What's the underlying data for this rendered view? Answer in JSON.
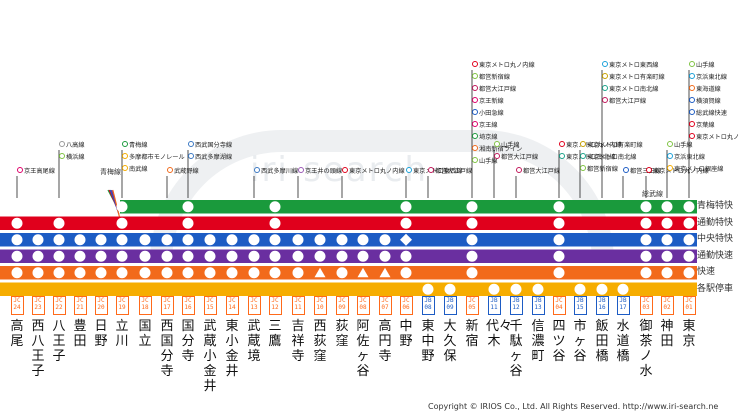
{
  "watermark": "iri-search",
  "bands": [
    {
      "key": "ome",
      "label": "青梅特快",
      "color": "#1a9a3c"
    },
    {
      "key": "tsukin",
      "label": "通勤特快",
      "color": "#e0001c"
    },
    {
      "key": "chuotokkai",
      "label": "中央特快",
      "color": "#1d5cc4"
    },
    {
      "key": "tsukinkai",
      "label": "通勤快速",
      "color": "#6a2fa0"
    },
    {
      "key": "kaisoku",
      "label": "快速",
      "color": "#f26a1b"
    },
    {
      "key": "kakueki",
      "label": "各駅停車",
      "color": "#f6ad00"
    }
  ],
  "branch_label": "青梅線",
  "sobu_label": "総武線",
  "stations": [
    {
      "name": "高尾",
      "code": "JC24",
      "code_color": "orange",
      "stops": [
        "none",
        "dot",
        "dot",
        "dot",
        "dot",
        "none"
      ],
      "transfers": [
        {
          "label": "京王高尾線",
          "color": "#e0006a"
        }
      ]
    },
    {
      "name": "西八王子",
      "code": "JC23",
      "code_color": "orange",
      "stops": [
        "none",
        "none",
        "dot",
        "dot",
        "dot",
        "none"
      ],
      "transfers": []
    },
    {
      "name": "八王子",
      "code": "JC22",
      "code_color": "orange",
      "stops": [
        "none",
        "dot",
        "dot",
        "dot",
        "dot",
        "none"
      ],
      "transfers": [
        {
          "label": "八高線",
          "color": "#999999"
        },
        {
          "label": "横浜線",
          "color": "#7fc342"
        }
      ]
    },
    {
      "name": "豊田",
      "code": "JC21",
      "code_color": "orange",
      "stops": [
        "none",
        "none",
        "dot",
        "dot",
        "dot",
        "none"
      ],
      "transfers": []
    },
    {
      "name": "日野",
      "code": "JC20",
      "code_color": "orange",
      "stops": [
        "none",
        "none",
        "dot",
        "dot",
        "dot",
        "none"
      ],
      "transfers": []
    },
    {
      "name": "立川",
      "code": "JC19",
      "code_color": "orange",
      "stops": [
        "dot",
        "dot",
        "dot",
        "dot",
        "dot",
        "none"
      ],
      "transfers": [
        {
          "label": "青梅線",
          "color": "#1a9a3c"
        },
        {
          "label": "多摩都市モノレール",
          "color": "#f6ad00"
        },
        {
          "label": "南武線",
          "color": "#f6ad00"
        }
      ]
    },
    {
      "name": "国立",
      "code": "JC18",
      "code_color": "orange",
      "stops": [
        "none",
        "none",
        "dot",
        "dot",
        "dot",
        "none"
      ],
      "transfers": []
    },
    {
      "name": "西国分寺",
      "code": "JC17",
      "code_color": "orange",
      "stops": [
        "none",
        "none",
        "dot",
        "dot",
        "dot",
        "none"
      ],
      "transfers": [
        {
          "label": "武蔵野線",
          "color": "#f26a1b"
        }
      ]
    },
    {
      "name": "国分寺",
      "code": "JC16",
      "code_color": "orange",
      "stops": [
        "dot",
        "dot",
        "dot",
        "dot",
        "dot",
        "none"
      ],
      "transfers": [
        {
          "label": "西武国分寺線",
          "color": "#3a78c3"
        },
        {
          "label": "西武多摩湖線",
          "color": "#3a78c3"
        }
      ]
    },
    {
      "name": "武蔵小金井",
      "code": "JC15",
      "code_color": "orange",
      "stops": [
        "none",
        "none",
        "dot",
        "dot",
        "dot",
        "none"
      ],
      "transfers": []
    },
    {
      "name": "東小金井",
      "code": "JC14",
      "code_color": "orange",
      "stops": [
        "none",
        "none",
        "dot",
        "dot",
        "dot",
        "none"
      ],
      "transfers": []
    },
    {
      "name": "武蔵境",
      "code": "JC13",
      "code_color": "orange",
      "stops": [
        "none",
        "none",
        "dot",
        "dot",
        "dot",
        "none"
      ],
      "transfers": [
        {
          "label": "西武多摩川線",
          "color": "#3a78c3"
        }
      ]
    },
    {
      "name": "三鷹",
      "code": "JC12",
      "code_color": "orange",
      "stops": [
        "dot",
        "dot",
        "dot",
        "dot",
        "dot",
        "none"
      ],
      "transfers": []
    },
    {
      "name": "吉祥寺",
      "code": "JC11",
      "code_color": "orange",
      "stops": [
        "none",
        "none",
        "dot",
        "dot",
        "dot",
        "none"
      ],
      "transfers": [
        {
          "label": "京王井の頭線",
          "color": "#9b59b6"
        }
      ]
    },
    {
      "name": "西荻窪",
      "code": "JC10",
      "code_color": "orange",
      "stops": [
        "none",
        "none",
        "dot",
        "dot",
        "tri",
        "none"
      ],
      "transfers": []
    },
    {
      "name": "荻窪",
      "code": "JC09",
      "code_color": "orange",
      "stops": [
        "none",
        "none",
        "dot",
        "dot",
        "dot",
        "none"
      ],
      "transfers": [
        {
          "label": "東京メトロ丸ノ内線",
          "color": "#e0001c"
        }
      ]
    },
    {
      "name": "阿佐ヶ谷",
      "code": "JC08",
      "code_color": "orange",
      "stops": [
        "none",
        "none",
        "dot",
        "dot",
        "tri",
        "none"
      ],
      "transfers": []
    },
    {
      "name": "高円寺",
      "code": "JC07",
      "code_color": "orange",
      "stops": [
        "none",
        "none",
        "dot",
        "dot",
        "tri",
        "none"
      ],
      "transfers": []
    },
    {
      "name": "中野",
      "code": "JC06",
      "code_color": "orange",
      "stops": [
        "dot",
        "dot",
        "diamond",
        "dot",
        "dot",
        "none"
      ],
      "transfers": [
        {
          "label": "東京メトロ東西線",
          "color": "#1aa0d8"
        }
      ]
    },
    {
      "name": "東中野",
      "code": "JB08",
      "code_color": "blue",
      "stops": [
        "none",
        "none",
        "none",
        "none",
        "none",
        "dot"
      ],
      "transfers": [
        {
          "label": "都営大江戸線",
          "color": "#c2185b"
        }
      ]
    },
    {
      "name": "大久保",
      "code": "JB09",
      "code_color": "blue",
      "stops": [
        "none",
        "none",
        "none",
        "none",
        "none",
        "dot"
      ],
      "transfers": []
    },
    {
      "name": "新宿",
      "code": "JC05",
      "code_color": "orange",
      "stops": [
        "dot",
        "dot",
        "dot",
        "dot",
        "dot",
        "none"
      ],
      "transfers": [
        {
          "label": "東京メトロ丸ノ内線",
          "color": "#e0001c"
        },
        {
          "label": "都営新宿線",
          "color": "#7fc342"
        },
        {
          "label": "都営大江戸線",
          "color": "#c2185b"
        },
        {
          "label": "京王新線",
          "color": "#e0006a"
        },
        {
          "label": "小田急線",
          "color": "#1d5cc4"
        },
        {
          "label": "京王線",
          "color": "#e0006a"
        },
        {
          "label": "埼京線",
          "color": "#1a9a3c"
        },
        {
          "label": "湘南新宿ライン",
          "color": "#f26a1b"
        },
        {
          "label": "山手線",
          "color": "#7fc342"
        }
      ]
    },
    {
      "name": "代々木",
      "code": "JB11",
      "code_color": "blue",
      "stops": [
        "none",
        "none",
        "none",
        "none",
        "none",
        "dot"
      ],
      "transfers": [
        {
          "label": "山手線",
          "color": "#7fc342"
        },
        {
          "label": "都営大江戸線",
          "color": "#c2185b"
        }
      ]
    },
    {
      "name": "千駄ヶ谷",
      "code": "JB12",
      "code_color": "blue",
      "stops": [
        "none",
        "none",
        "none",
        "none",
        "none",
        "dot"
      ],
      "transfers": [
        {
          "label": "都営大江戸線",
          "color": "#c2185b"
        }
      ]
    },
    {
      "name": "信濃町",
      "code": "JB13",
      "code_color": "blue",
      "stops": [
        "none",
        "none",
        "none",
        "none",
        "none",
        "dot"
      ],
      "transfers": []
    },
    {
      "name": "四ツ谷",
      "code": "JC04",
      "code_color": "orange",
      "stops": [
        "dot",
        "dot",
        "dot",
        "dot",
        "dot",
        "none"
      ],
      "transfers": [
        {
          "label": "東京メトロ丸ノ内線",
          "color": "#e0001c"
        },
        {
          "label": "東京メトロ南北線",
          "color": "#1aa38a"
        }
      ]
    },
    {
      "name": "市ヶ谷",
      "code": "JB15",
      "code_color": "blue",
      "stops": [
        "none",
        "none",
        "none",
        "none",
        "none",
        "dot"
      ],
      "transfers": [
        {
          "label": "東京メトロ有楽町線",
          "color": "#c9a200"
        },
        {
          "label": "東京メトロ南北線",
          "color": "#1aa38a"
        },
        {
          "label": "都営新宿線",
          "color": "#7fc342"
        }
      ]
    },
    {
      "name": "飯田橋",
      "code": "JB16",
      "code_color": "blue",
      "stops": [
        "none",
        "none",
        "none",
        "none",
        "none",
        "dot"
      ],
      "transfers": [
        {
          "label": "東京メトロ東西線",
          "color": "#1aa0d8"
        },
        {
          "label": "東京メトロ有楽町線",
          "color": "#c9a200"
        },
        {
          "label": "東京メトロ南北線",
          "color": "#1aa38a"
        },
        {
          "label": "都営大江戸線",
          "color": "#c2185b"
        }
      ]
    },
    {
      "name": "水道橋",
      "code": "JB17",
      "code_color": "blue",
      "stops": [
        "none",
        "none",
        "none",
        "none",
        "none",
        "dot"
      ],
      "transfers": [
        {
          "label": "都営三田線",
          "color": "#1d5cc4"
        }
      ]
    },
    {
      "name": "御茶ノ水",
      "code": "JC03",
      "code_color": "orange",
      "stops": [
        "dot",
        "dot",
        "dot",
        "dot",
        "dot",
        "none"
      ],
      "transfers": [
        {
          "label": "東京メトロ丸ノ内線",
          "color": "#e0001c"
        }
      ]
    },
    {
      "name": "神田",
      "code": "JC02",
      "code_color": "orange",
      "stops": [
        "dot",
        "dot",
        "dot",
        "dot",
        "dot",
        "none"
      ],
      "transfers": [
        {
          "label": "山手線",
          "color": "#7fc342"
        },
        {
          "label": "京浜東北線",
          "color": "#1aa0d8"
        },
        {
          "label": "東京メトロ銀座線",
          "color": "#f6ad00"
        }
      ]
    },
    {
      "name": "東京",
      "code": "JC01",
      "code_color": "orange",
      "stops": [
        "dot",
        "dot",
        "dot",
        "dot",
        "dot",
        "none"
      ],
      "transfers": [
        {
          "label": "山手線",
          "color": "#7fc342"
        },
        {
          "label": "京浜東北線",
          "color": "#1aa0d8"
        },
        {
          "label": "東海道線",
          "color": "#f26a1b"
        },
        {
          "label": "横須賀線",
          "color": "#1d5cc4"
        },
        {
          "label": "総武線快速",
          "color": "#1d5cc4"
        },
        {
          "label": "京葉線",
          "color": "#e0001c"
        },
        {
          "label": "東京メトロ丸ノ内線",
          "color": "#e0001c"
        }
      ]
    }
  ],
  "copyright": "Copyright © IRIOS Co., Ltd. All Rights Reserved.  http://www.iri-search.ne"
}
